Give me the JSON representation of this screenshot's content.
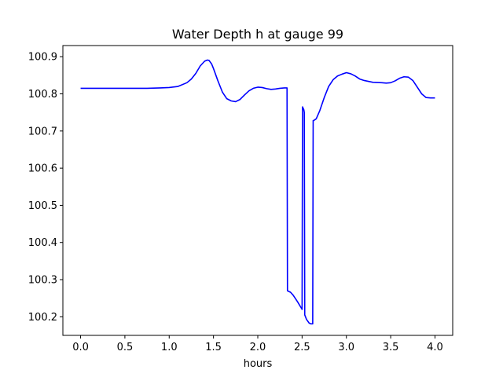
{
  "chart_data": {
    "type": "line",
    "title": "Water Depth h at gauge 99",
    "xlabel": "hours",
    "ylabel": "",
    "xlim": [
      -0.2,
      4.2
    ],
    "ylim": [
      100.15,
      100.93
    ],
    "xticks": [
      0.0,
      0.5,
      1.0,
      1.5,
      2.0,
      2.5,
      3.0,
      3.5,
      4.0
    ],
    "xtick_labels": [
      "0.0",
      "0.5",
      "1.0",
      "1.5",
      "2.0",
      "2.5",
      "3.0",
      "3.5",
      "4.0"
    ],
    "yticks": [
      100.2,
      100.3,
      100.4,
      100.5,
      100.6,
      100.7,
      100.8,
      100.9
    ],
    "ytick_labels": [
      "100.2",
      "100.3",
      "100.4",
      "100.5",
      "100.6",
      "100.7",
      "100.8",
      "100.9"
    ],
    "grid": false,
    "series": [
      {
        "color": "#0000ff",
        "x": [
          0.0,
          0.25,
          0.5,
          0.75,
          0.9,
          1.0,
          1.1,
          1.2,
          1.25,
          1.3,
          1.35,
          1.4,
          1.43,
          1.45,
          1.48,
          1.5,
          1.55,
          1.6,
          1.65,
          1.7,
          1.75,
          1.8,
          1.85,
          1.9,
          1.95,
          2.0,
          2.05,
          2.1,
          2.15,
          2.2,
          2.25,
          2.3,
          2.33,
          2.335,
          2.37,
          2.4,
          2.45,
          2.5,
          2.505,
          2.52,
          2.525,
          2.53,
          2.55,
          2.58,
          2.6,
          2.62,
          2.625,
          2.63,
          2.66,
          2.7,
          2.75,
          2.8,
          2.85,
          2.9,
          2.95,
          3.0,
          3.05,
          3.1,
          3.15,
          3.2,
          3.3,
          3.4,
          3.45,
          3.5,
          3.55,
          3.6,
          3.65,
          3.7,
          3.75,
          3.8,
          3.85,
          3.9,
          3.95,
          4.0
        ],
        "y": [
          100.815,
          100.815,
          100.815,
          100.815,
          100.816,
          100.817,
          100.82,
          100.83,
          100.84,
          100.855,
          100.875,
          100.888,
          100.891,
          100.89,
          100.88,
          100.868,
          100.835,
          100.805,
          100.787,
          100.781,
          100.779,
          100.785,
          100.797,
          100.808,
          100.815,
          100.818,
          100.817,
          100.814,
          100.812,
          100.813,
          100.815,
          100.816,
          100.816,
          100.27,
          100.266,
          100.258,
          100.24,
          100.22,
          100.765,
          100.757,
          100.75,
          100.205,
          100.193,
          100.183,
          100.181,
          100.181,
          100.728,
          100.728,
          100.733,
          100.755,
          100.79,
          100.82,
          100.838,
          100.848,
          100.853,
          100.857,
          100.854,
          100.848,
          100.84,
          100.836,
          100.831,
          100.83,
          100.829,
          100.83,
          100.835,
          100.842,
          100.846,
          100.845,
          100.836,
          100.818,
          100.8,
          100.79,
          100.789,
          100.789
        ]
      }
    ]
  }
}
